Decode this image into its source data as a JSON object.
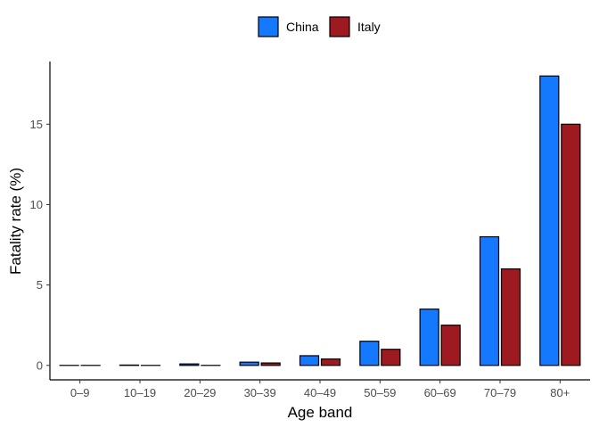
{
  "chart_data": {
    "type": "bar",
    "xlabel": "Age band",
    "ylabel": "Fatality rate (%)",
    "categories": [
      "0–9",
      "10–19",
      "20–29",
      "30–39",
      "40–49",
      "50–59",
      "60–69",
      "70–79",
      "80+"
    ],
    "series": [
      {
        "name": "China",
        "color": "#1479ff",
        "values": [
          0,
          0.02,
          0.09,
          0.2,
          0.6,
          1.5,
          3.5,
          8.0,
          18.0
        ]
      },
      {
        "name": "Italy",
        "color": "#9e1a20",
        "values": [
          0,
          0,
          0,
          0.15,
          0.4,
          1.0,
          2.5,
          6.0,
          15.0
        ]
      }
    ],
    "yticks": [
      0,
      5,
      10,
      15
    ],
    "ylim": [
      -0.9,
      18.9
    ],
    "grid": false,
    "legend_position": "top"
  }
}
